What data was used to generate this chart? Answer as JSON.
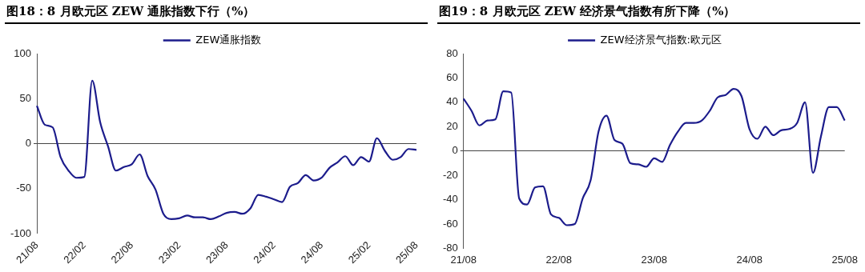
{
  "chart_data": [
    {
      "type": "line",
      "title": "图18：8 月欧元区 ZEW 通胀指数下行（%）",
      "categories": [
        "21/08",
        null,
        null,
        null,
        null,
        null,
        "22/02",
        null,
        null,
        null,
        null,
        null,
        "22/08",
        null,
        null,
        null,
        null,
        null,
        "23/02",
        null,
        null,
        null,
        null,
        null,
        "23/08",
        null,
        null,
        null,
        null,
        null,
        "24/02",
        null,
        null,
        null,
        null,
        null,
        "24/08",
        null,
        null,
        null,
        null,
        null,
        "25/02",
        null,
        null,
        null,
        null,
        null,
        "25/08"
      ],
      "series": [
        {
          "name": "ZEW通胀指数",
          "color": "#1c1c8c",
          "values": [
            42,
            21,
            18,
            -15,
            -30,
            -38,
            -37,
            70,
            24,
            -3,
            -30,
            -26,
            -23,
            -12,
            -36,
            -51,
            -78,
            -84,
            -83,
            -80,
            -82,
            -82,
            -84,
            -81,
            -77,
            -76,
            -78,
            -72,
            -57,
            -59,
            -62,
            -65,
            -48,
            -44,
            -35,
            -41,
            -38,
            -27,
            -21,
            -14,
            -24,
            -15,
            -20,
            6,
            -8,
            -18,
            -15,
            -6,
            -7
          ]
        }
      ],
      "ylim": [
        -100,
        100
      ],
      "yticks": [
        -100,
        -50,
        0,
        50,
        100
      ],
      "legend": "top",
      "marker": "none",
      "line_style": "solid"
    },
    {
      "type": "line",
      "title": "图19：8 月欧元区 ZEW 经济景气指数有所下降（%）",
      "categories": [
        "21/08",
        null,
        null,
        null,
        null,
        null,
        null,
        null,
        null,
        null,
        null,
        null,
        "22/08",
        null,
        null,
        null,
        null,
        null,
        null,
        null,
        null,
        null,
        null,
        null,
        "23/08",
        null,
        null,
        null,
        null,
        null,
        null,
        null,
        null,
        null,
        null,
        null,
        "24/08",
        null,
        null,
        null,
        null,
        null,
        null,
        null,
        null,
        null,
        null,
        null,
        "25/08"
      ],
      "series": [
        {
          "name": "ZEW经济景气指数:欧元区",
          "color": "#1c1c8c",
          "values": [
            43,
            33,
            21,
            25,
            26,
            49,
            48,
            -39,
            -44,
            -30,
            -29,
            -52,
            -55,
            -61,
            -60,
            -39,
            -24,
            16,
            29,
            9,
            6,
            -10,
            -11,
            -13,
            -6,
            -9,
            5,
            16,
            23,
            23,
            25,
            33,
            44,
            46,
            51,
            45,
            18,
            10,
            20,
            13,
            17,
            18,
            23,
            40,
            -18,
            12,
            36,
            36,
            25
          ]
        }
      ],
      "ylim": [
        -80,
        80
      ],
      "yticks": [
        -80,
        -60,
        -40,
        -20,
        0,
        20,
        40,
        60,
        80
      ],
      "legend": "top",
      "marker": "none",
      "line_style": "solid"
    }
  ]
}
